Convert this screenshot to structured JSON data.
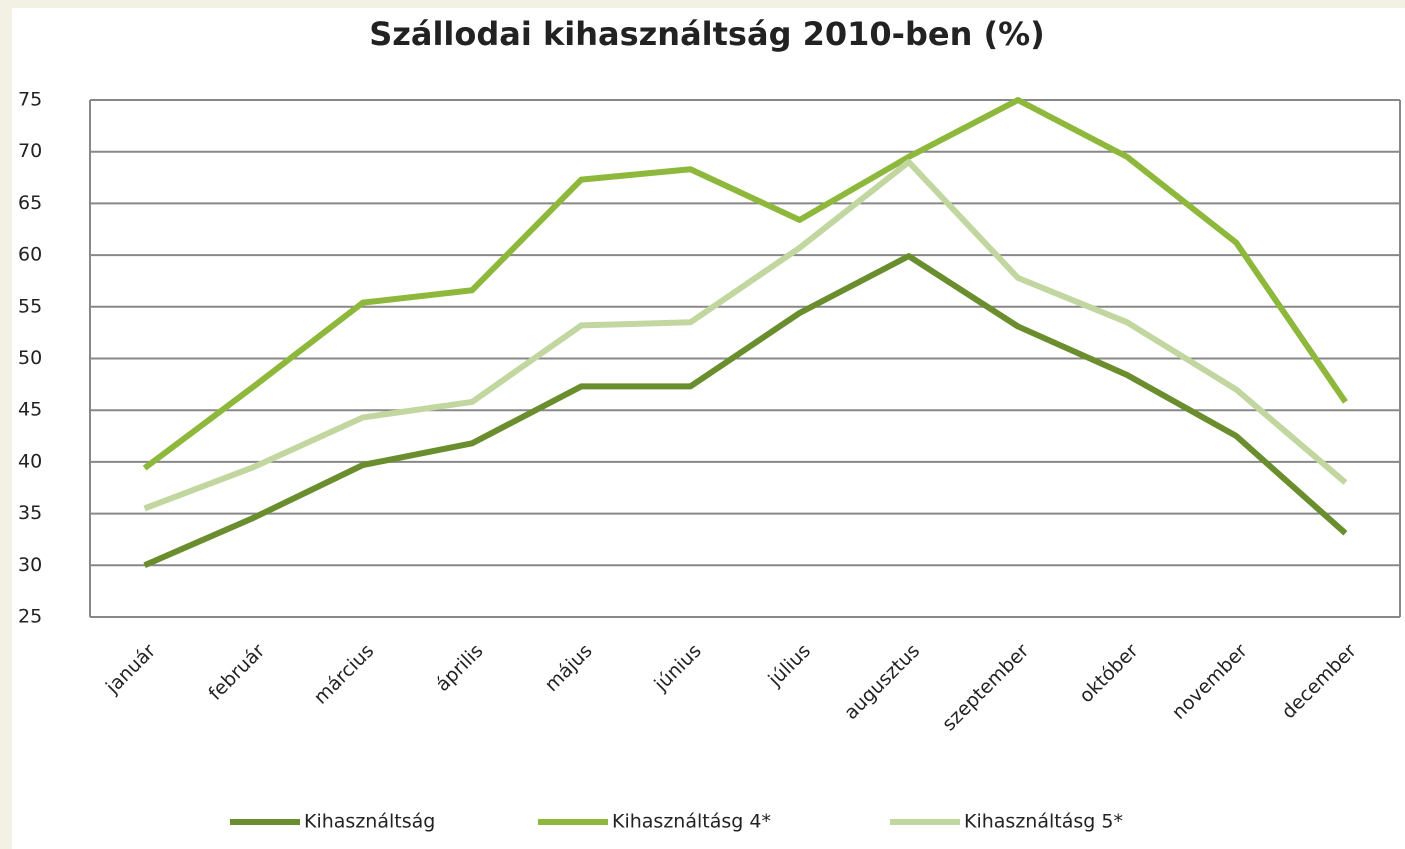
{
  "chart_data": {
    "type": "line",
    "title": "Szállodai kihasználtság 2010-ben (%)",
    "categories": [
      "január",
      "február",
      "március",
      "április",
      "május",
      "június",
      "július",
      "augusztus",
      "szeptember",
      "október",
      "november",
      "december"
    ],
    "series": [
      {
        "name": "Kihasználtság",
        "color": "#6a8d2e",
        "values": [
          30,
          34.6,
          39.7,
          41.8,
          47.3,
          47.3,
          54.4,
          59.9,
          53.1,
          48.4,
          42.5,
          33.1
        ]
      },
      {
        "name": "Kihasználtásg 4*",
        "color": "#8db83c",
        "values": [
          39.4,
          47.3,
          55.4,
          56.6,
          67.3,
          68.3,
          63.4,
          69.5,
          75,
          69.5,
          61.2,
          45.8
        ]
      },
      {
        "name": "Kihasználtásg 5*",
        "color": "#c2d6a0",
        "values": [
          35.5,
          39.5,
          44.3,
          45.8,
          53.2,
          53.5,
          60.7,
          69,
          57.8,
          53.5,
          47,
          38
        ]
      }
    ],
    "ylim": [
      25,
      75
    ],
    "yticks": [
      25,
      30,
      35,
      40,
      45,
      50,
      55,
      60,
      65,
      70,
      75
    ],
    "grid": true,
    "legend": "bottom"
  }
}
